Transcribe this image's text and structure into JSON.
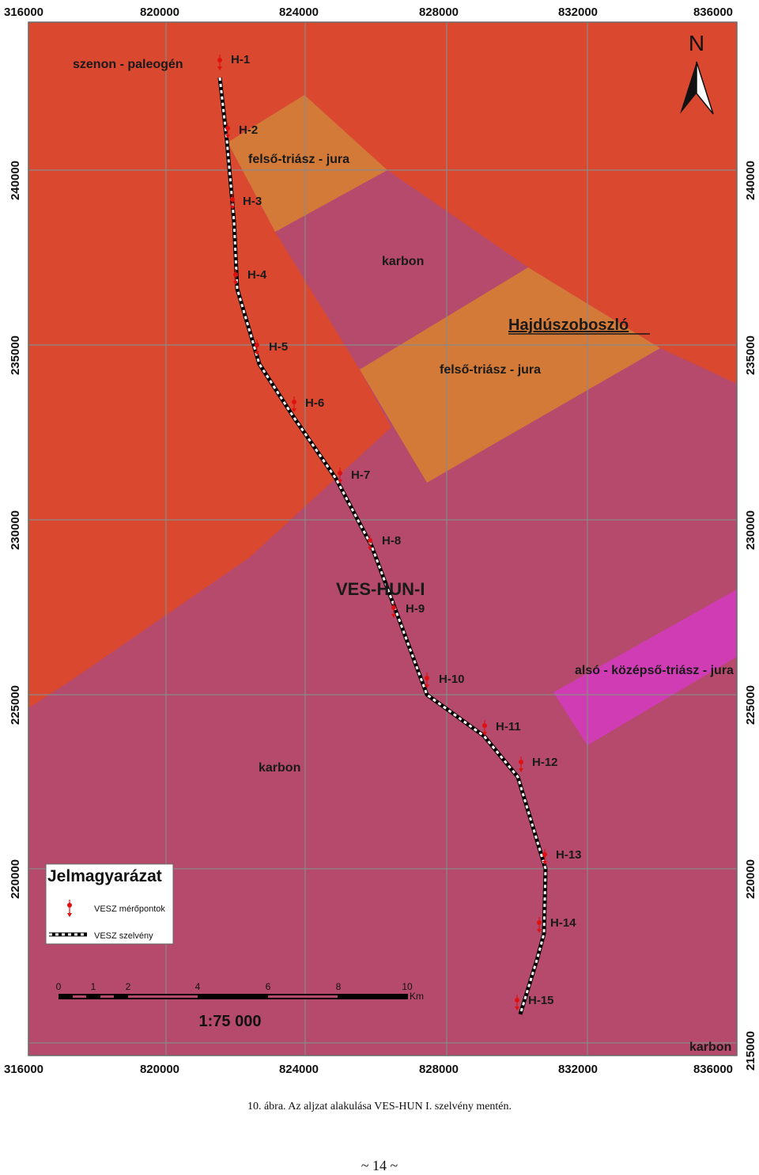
{
  "map": {
    "colors": {
      "paleogene": "#da4830",
      "triassic_jurassic": "#d47a38",
      "carboniferous": "#b54a6d",
      "lower_middle_triassic": "#cf3cb4",
      "grid": "#8a8a8a",
      "profile_dash": "#000000",
      "point": "#e01010"
    },
    "top_x_labels": [
      "316000",
      "820000",
      "824000",
      "828000",
      "832000",
      "836000"
    ],
    "bottom_x_labels": [
      "316000",
      "820000",
      "824000",
      "828000",
      "832000",
      "836000"
    ],
    "left_y_labels": [
      "240000",
      "235000",
      "230000",
      "225000",
      "220000"
    ],
    "right_y_labels": [
      "240000",
      "235000",
      "230000",
      "225000",
      "220000",
      "215000"
    ],
    "zones": {
      "szenon_paleogen": "szenon - paleogén",
      "felso_triasz_1": "felső-triász - jura",
      "felso_triasz_2": "felső-triász - jura",
      "karbon_1": "karbon",
      "karbon_2": "karbon",
      "karbon_3": "karbon",
      "also_kozepso": "alsó - középső-triász - jura"
    },
    "city": "Hajdúszoboszló",
    "profile_name": "VES-HUN-I",
    "points": [
      "H-1",
      "H-2",
      "H-3",
      "H-4",
      "H-5",
      "H-6",
      "H-7",
      "H-8",
      "H-9",
      "H-10",
      "H-11",
      "H-12",
      "H-13",
      "H-14",
      "H-15"
    ],
    "north": "N",
    "north_icon": "north-arrow-icon"
  },
  "legend": {
    "title": "Jelmagyarázat",
    "items": [
      {
        "label": "VESZ mérőpontok",
        "icon": "measurement-point-icon"
      },
      {
        "label": "VESZ szelvény",
        "icon": "profile-line-icon"
      }
    ]
  },
  "scale_bar": {
    "ticks": [
      "0",
      "1",
      "2",
      "4",
      "6",
      "8",
      "10"
    ],
    "unit": "Km",
    "ratio": "1:75 000"
  },
  "caption": "10. ábra. Az aljzat alakulása VES-HUN I. szelvény mentén.",
  "page_number": "~ 14 ~"
}
